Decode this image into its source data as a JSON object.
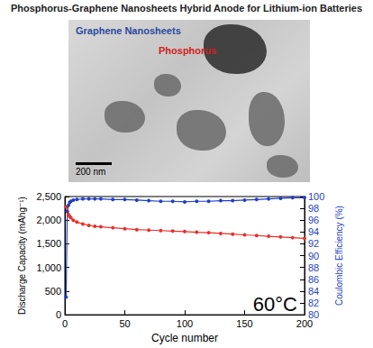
{
  "header": {
    "title": "Phosphorus-Graphene Nanosheets Hybrid Anode for Lithium-ion Batteries"
  },
  "image": {
    "labels": [
      {
        "text": "Graphene Nanosheets",
        "color": "#2a4aa0"
      },
      {
        "text": "Phosphorus",
        "color": "#d42020"
      }
    ],
    "scale_bar": "200 nm"
  },
  "chart_data": {
    "type": "line",
    "annotations": [
      "60°C"
    ],
    "x_label": "Cycle number",
    "y_label": "Discharge Capacity (mAhg⁻¹)",
    "y2_label": "Coulombic Efficiency (%)",
    "x": [
      1,
      2,
      3,
      4,
      5,
      7,
      10,
      15,
      20,
      25,
      30,
      40,
      50,
      60,
      70,
      80,
      90,
      100,
      110,
      120,
      130,
      140,
      150,
      160,
      170,
      180,
      190,
      200
    ],
    "series": [
      {
        "name": "Discharge Capacity",
        "color": "#e8312b",
        "marker": "circle",
        "values": [
          2280,
          2180,
          2120,
          2080,
          2050,
          2000,
          1960,
          1920,
          1890,
          1870,
          1860,
          1840,
          1820,
          1800,
          1790,
          1780,
          1770,
          1760,
          1745,
          1735,
          1720,
          1705,
          1690,
          1675,
          1660,
          1645,
          1630,
          1615
        ]
      },
      {
        "name": "Coulombic Efficiency",
        "color": "#1f3fc8",
        "marker": "circle",
        "axis": "y2",
        "values": [
          83,
          97.5,
          98.5,
          99,
          99.2,
          99.4,
          99.5,
          99.6,
          99.6,
          99.6,
          99.6,
          99.5,
          99.5,
          99.4,
          99.3,
          99.2,
          99.2,
          99.1,
          99.2,
          99.2,
          99.3,
          99.3,
          99.4,
          99.5,
          99.6,
          99.7,
          99.8,
          99.8
        ]
      }
    ],
    "xlim": [
      0,
      200
    ],
    "xticks": [
      0,
      50,
      100,
      150,
      200
    ],
    "ylim": [
      0,
      2500
    ],
    "yticks": [
      0,
      500,
      1000,
      1500,
      2000,
      2500
    ],
    "y2lim": [
      80,
      100
    ],
    "y2ticks": [
      80,
      82,
      84,
      86,
      88,
      90,
      92,
      94,
      96,
      98,
      100
    ],
    "grid": false
  }
}
